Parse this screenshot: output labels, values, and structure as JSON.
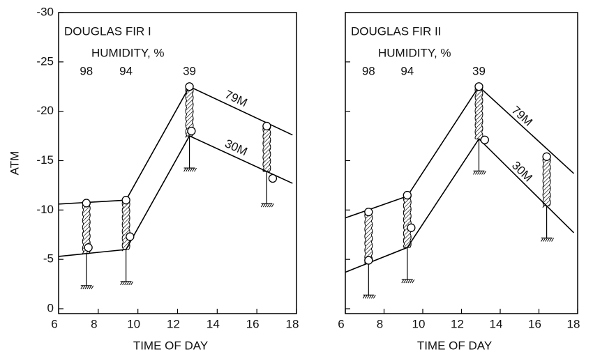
{
  "chart_data": [
    {
      "type": "line",
      "title": "DOUGLAS FIR I",
      "subtitle": "HUMIDITY, %",
      "humidity": {
        "x": [
          7.4,
          9.4,
          12.6
        ],
        "values": [
          98,
          94,
          39
        ]
      },
      "xlabel": "TIME OF DAY",
      "ylabel": "ATM",
      "xlim": [
        6,
        18
      ],
      "xticks": [
        6,
        8,
        10,
        12,
        14,
        16,
        18
      ],
      "ylim": [
        0,
        -30
      ],
      "yticks": [
        0,
        -5,
        -10,
        -15,
        -20,
        -25,
        -30
      ],
      "show_ytick_labels": true,
      "series": [
        {
          "name": "79M",
          "color": "#000000",
          "x": [
            6,
            9.4,
            12.6,
            17.8
          ],
          "values": [
            -10.6,
            -11,
            -22.5,
            -17.6
          ],
          "points": {
            "x": [
              7.4,
              9.4,
              12.6,
              16.5
            ],
            "values": [
              -10.7,
              -11,
              -22.5,
              -18.5
            ]
          }
        },
        {
          "name": "30M",
          "color": "#000000",
          "x": [
            6,
            9.4,
            12.6,
            17.8
          ],
          "values": [
            -5.3,
            -6,
            -17.5,
            -12.7
          ],
          "points": {
            "x": [
              7.5,
              9.6,
              12.7,
              16.8
            ],
            "values": [
              -6.2,
              -7.3,
              -18,
              -13.2
            ]
          }
        }
      ]
    },
    {
      "type": "line",
      "title": "DOUGLAS FIR II",
      "subtitle": "HUMIDITY, %",
      "humidity": {
        "x": [
          7.2,
          9.2,
          12.9
        ],
        "values": [
          98,
          94,
          39
        ]
      },
      "xlabel": "TIME OF DAY",
      "xlim": [
        6,
        18
      ],
      "xticks": [
        6,
        8,
        10,
        12,
        14,
        16,
        18
      ],
      "ylim": [
        0,
        -30
      ],
      "yticks": [
        0,
        -5,
        -10,
        -15,
        -20,
        -25,
        -30
      ],
      "show_ytick_labels": false,
      "series": [
        {
          "name": "79M",
          "color": "#000000",
          "x": [
            6,
            9.2,
            12.9,
            17.8
          ],
          "values": [
            -9.2,
            -11.4,
            -22.5,
            -13.7
          ],
          "points": {
            "x": [
              7.2,
              9.2,
              12.9,
              16.4
            ],
            "values": [
              -9.8,
              -11.5,
              -22.5,
              -15.4
            ]
          }
        },
        {
          "name": "30M",
          "color": "#000000",
          "x": [
            6,
            9.2,
            12.9,
            17.8
          ],
          "values": [
            -3.7,
            -6.2,
            -17.2,
            -7.7
          ],
          "points": {
            "x": [
              7.2,
              9.4,
              13.2
            ],
            "values": [
              -4.9,
              -8.2,
              -17.1
            ]
          }
        }
      ]
    }
  ]
}
